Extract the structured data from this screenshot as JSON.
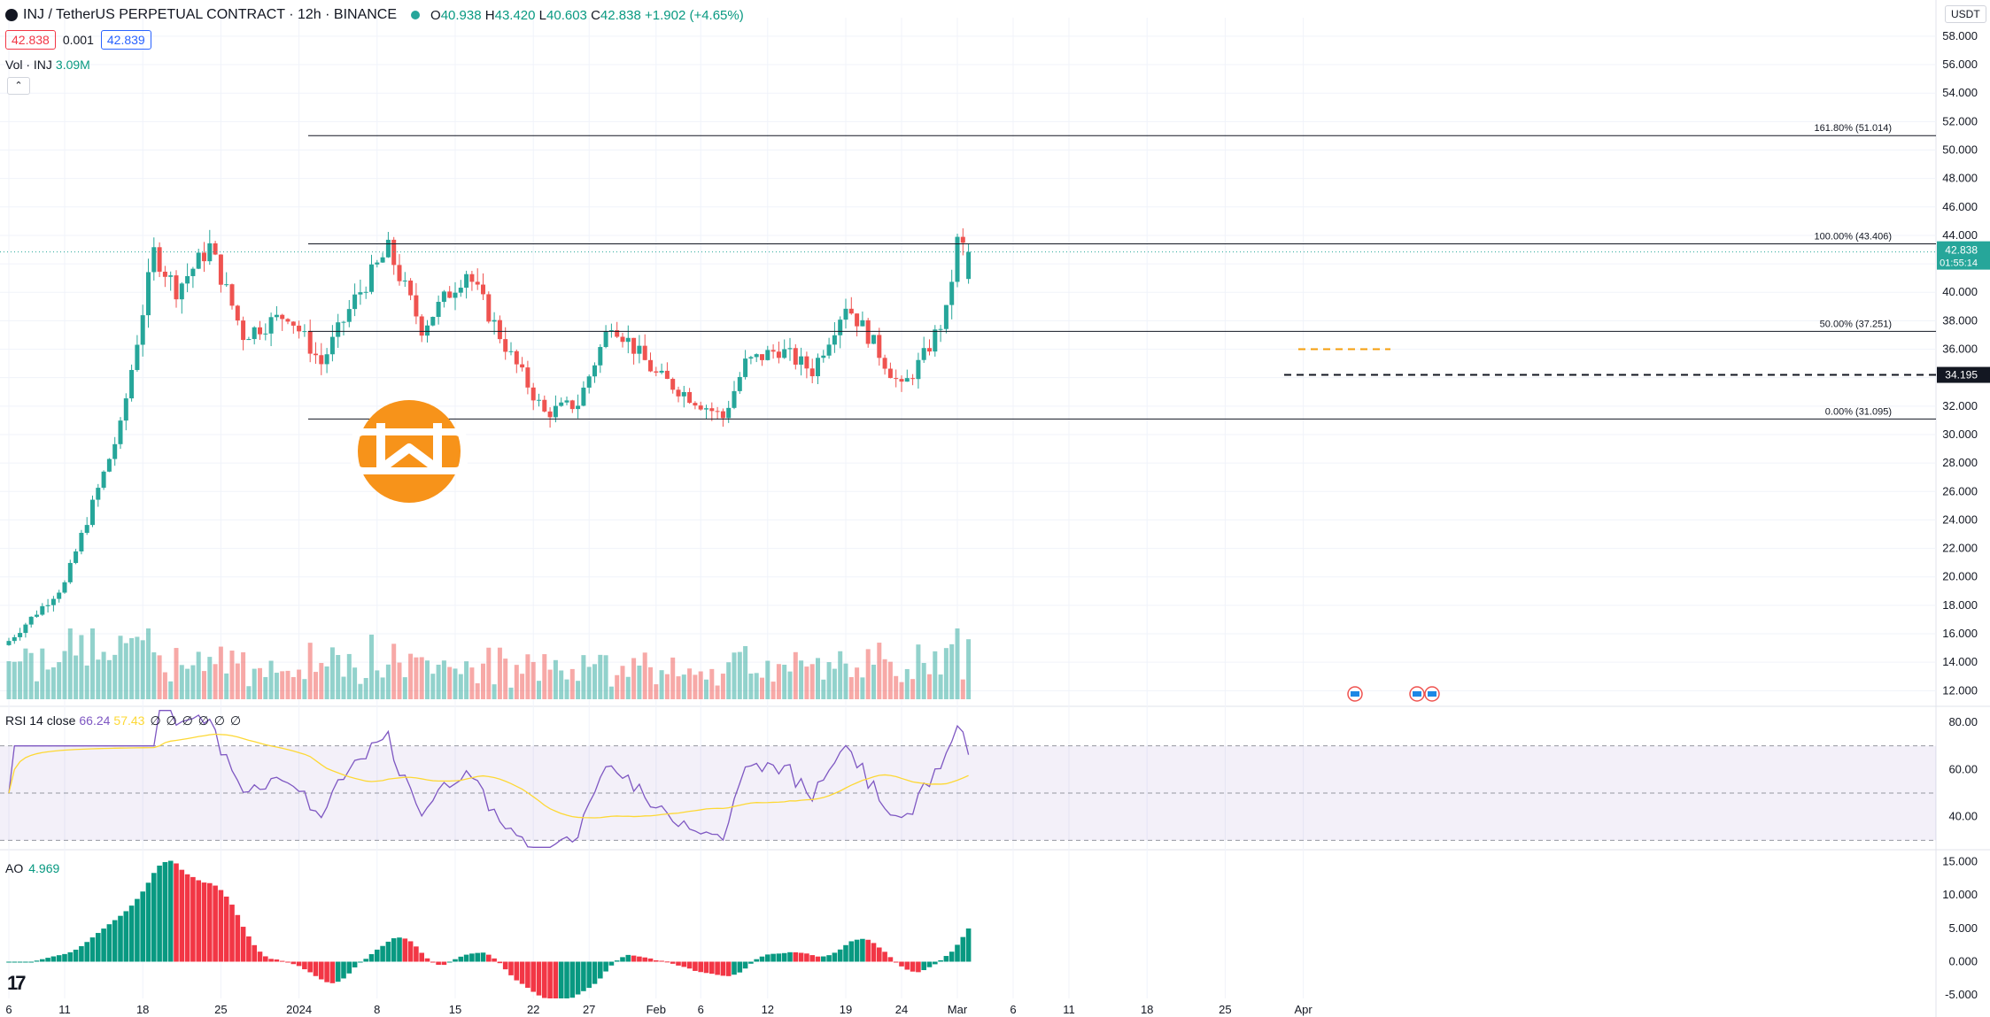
{
  "header": {
    "title": "INJ / TetherUS PERPETUAL CONTRACT · 12h · BINANCE",
    "ohlc": {
      "o": "40.938",
      "h": "43.420",
      "l": "40.603",
      "c": "42.838",
      "change": "+1.902 (+4.65%)"
    },
    "bid": "42.838",
    "spread": "0.001",
    "ask": "42.839",
    "collapse_icon": "chevron-up-icon"
  },
  "volume_label": {
    "name": "Vol · INJ",
    "value": "3.09M"
  },
  "rsi_label": {
    "name": "RSI 14 close",
    "rsi": "66.24",
    "ma": "57.43",
    "extra": "∅ ∅ ∅ ∅ ∅ ∅"
  },
  "ao_label": {
    "name": "AO",
    "value": "4.969"
  },
  "currency": "USDT",
  "colors": {
    "up": "#26a69a",
    "down": "#ef5350",
    "rsi": "#7e57c2",
    "rsi_ma": "#fdd835",
    "accent": "#f7931a"
  },
  "chart_data": [
    {
      "type": "candlestick",
      "title": "INJ / TetherUS PERPETUAL CONTRACT · 12h · BINANCE",
      "ylim": [
        10.9,
        59.3
      ],
      "y_ticks": [
        "58.000",
        "56.000",
        "54.000",
        "52.000",
        "50.000",
        "48.000",
        "46.000",
        "44.000",
        "42.000",
        "40.000",
        "38.000",
        "36.000",
        "34.000",
        "32.000",
        "30.000",
        "28.000",
        "26.000",
        "24.000",
        "22.000",
        "20.000",
        "18.000",
        "16.000",
        "14.000",
        "12.000"
      ],
      "x_ticks": [
        "6",
        "11",
        "18",
        "25",
        "2024",
        "8",
        "15",
        "22",
        "27",
        "Feb",
        "6",
        "12",
        "19",
        "24",
        "Mar",
        "6",
        "11",
        "18",
        "25",
        "Apr"
      ],
      "last_price": "42.838",
      "countdown": "01:55:14",
      "fib_levels": [
        {
          "label": "161.80% (51.014)",
          "value": 51.014
        },
        {
          "label": "100.00% (43.406)",
          "value": 43.406
        },
        {
          "label": "50.00% (37.251)",
          "value": 37.251
        },
        {
          "label": "0.00% (31.095)",
          "value": 31.095
        }
      ],
      "dashed_level": {
        "label": "34.195",
        "value": 34.195
      },
      "anchors": [
        {
          "date": "Dec 6",
          "price": 15.5
        },
        {
          "date": "Dec 11",
          "price": 19.5
        },
        {
          "date": "Dec 13",
          "price": 24.0
        },
        {
          "date": "Dec 16",
          "price": 30.5
        },
        {
          "date": "Dec 19",
          "price": 42.8
        },
        {
          "date": "Dec 21",
          "price": 40.2
        },
        {
          "date": "Dec 24",
          "price": 43.2
        },
        {
          "date": "Dec 27",
          "price": 37.0
        },
        {
          "date": "Dec 31",
          "price": 38.5
        },
        {
          "date": "Jan 3",
          "price": 35.0
        },
        {
          "date": "Jan 6",
          "price": 39.5
        },
        {
          "date": "Jan 9",
          "price": 43.0
        },
        {
          "date": "Jan 12",
          "price": 37.5
        },
        {
          "date": "Jan 16",
          "price": 41.5
        },
        {
          "date": "Jan 20",
          "price": 35.5
        },
        {
          "date": "Jan 23",
          "price": 31.5
        },
        {
          "date": "Jan 26",
          "price": 32.2
        },
        {
          "date": "Jan 29",
          "price": 38.0
        },
        {
          "date": "Feb 2",
          "price": 34.2
        },
        {
          "date": "Feb 6",
          "price": 32.2
        },
        {
          "date": "Feb 8",
          "price": 31.2
        },
        {
          "date": "Feb 10",
          "price": 35.0
        },
        {
          "date": "Feb 13",
          "price": 36.0
        },
        {
          "date": "Feb 16",
          "price": 34.5
        },
        {
          "date": "Feb 19",
          "price": 39.2
        },
        {
          "date": "Feb 21",
          "price": 37.0
        },
        {
          "date": "Feb 24",
          "price": 33.2
        },
        {
          "date": "Feb 26",
          "price": 35.5
        },
        {
          "date": "Feb 28",
          "price": 38.5
        },
        {
          "date": "Feb 29",
          "price": 43.5
        },
        {
          "date": "Mar 1",
          "price": 42.84
        }
      ]
    },
    {
      "type": "bar",
      "title": "Vol · INJ",
      "last_value": "3.09M"
    },
    {
      "type": "line",
      "title": "RSI 14 close",
      "series": [
        {
          "name": "RSI",
          "last": 66.24
        },
        {
          "name": "MA",
          "last": 57.43
        }
      ],
      "ylim": [
        26,
        86
      ],
      "y_ticks": [
        "80.00",
        "60.00",
        "40.00"
      ],
      "bands": [
        70,
        50,
        30
      ]
    },
    {
      "type": "bar",
      "title": "AO",
      "last_value": 4.969,
      "ylim": [
        -5.5,
        16.5
      ],
      "y_ticks": [
        "15.000",
        "10.000",
        "5.000",
        "0.000",
        "-5.000"
      ]
    }
  ]
}
